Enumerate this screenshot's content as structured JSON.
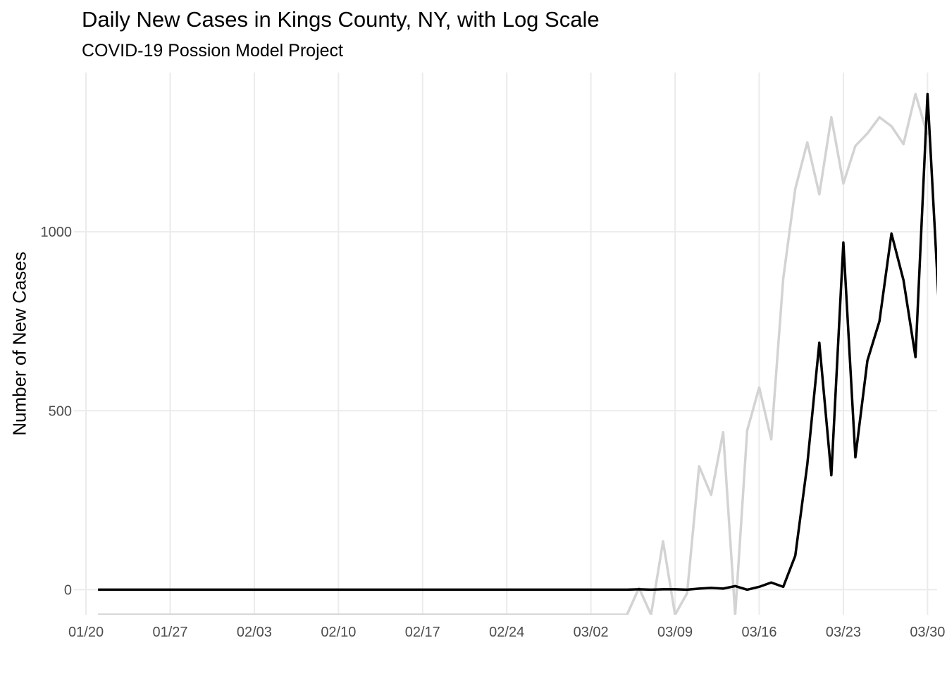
{
  "chart_data": {
    "type": "line",
    "title": "Daily New Cases in Kings County, NY, with Log Scale",
    "subtitle": "COVID-19 Possion Model Project",
    "xlabel": "",
    "ylabel": "Number of New Cases",
    "x_ticks": [
      "01/20",
      "01/27",
      "02/03",
      "02/10",
      "02/17",
      "02/24",
      "03/02",
      "03/09",
      "03/16",
      "03/23",
      "03/30"
    ],
    "y_ticks": [
      "0",
      "500",
      "1000"
    ],
    "y_tick_values": [
      0,
      500,
      1000
    ],
    "ylim": [
      -70,
      1445
    ],
    "xlim_days": [
      -1,
      70.8
    ],
    "grid": true,
    "series": [
      {
        "color": "#000000",
        "stroke_width": 3.5,
        "points": [
          [
            1,
            0
          ],
          [
            2,
            0
          ],
          [
            3,
            0
          ],
          [
            4,
            0
          ],
          [
            5,
            0
          ],
          [
            6,
            0
          ],
          [
            7,
            0
          ],
          [
            8,
            0
          ],
          [
            9,
            0
          ],
          [
            10,
            0
          ],
          [
            11,
            0
          ],
          [
            12,
            0
          ],
          [
            13,
            0
          ],
          [
            14,
            0
          ],
          [
            15,
            0
          ],
          [
            16,
            0
          ],
          [
            17,
            0
          ],
          [
            18,
            0
          ],
          [
            19,
            0
          ],
          [
            20,
            0
          ],
          [
            21,
            0
          ],
          [
            22,
            0
          ],
          [
            23,
            0
          ],
          [
            24,
            0
          ],
          [
            25,
            0
          ],
          [
            26,
            0
          ],
          [
            27,
            0
          ],
          [
            28,
            0
          ],
          [
            29,
            0
          ],
          [
            30,
            0
          ],
          [
            31,
            0
          ],
          [
            32,
            0
          ],
          [
            33,
            0
          ],
          [
            34,
            0
          ],
          [
            35,
            0
          ],
          [
            36,
            0
          ],
          [
            37,
            0
          ],
          [
            38,
            0
          ],
          [
            39,
            0
          ],
          [
            40,
            0
          ],
          [
            41,
            0
          ],
          [
            42,
            0
          ],
          [
            43,
            0
          ],
          [
            44,
            0
          ],
          [
            45,
            0
          ],
          [
            46,
            1
          ],
          [
            47,
            0
          ],
          [
            48,
            1
          ],
          [
            49,
            1
          ],
          [
            50,
            0
          ],
          [
            51,
            3
          ],
          [
            52,
            5
          ],
          [
            53,
            3
          ],
          [
            54,
            10
          ],
          [
            55,
            0
          ],
          [
            56,
            8
          ],
          [
            57,
            20
          ],
          [
            58,
            8
          ],
          [
            59,
            95
          ],
          [
            60,
            350
          ],
          [
            61,
            690
          ],
          [
            62,
            320
          ],
          [
            63,
            970
          ],
          [
            64,
            370
          ],
          [
            65,
            640
          ],
          [
            66,
            750
          ],
          [
            67,
            995
          ],
          [
            68,
            865
          ],
          [
            69,
            650
          ],
          [
            70,
            1385
          ],
          [
            71,
            760
          ]
        ]
      },
      {
        "color": "#d3d3d3",
        "stroke_width": 3.5,
        "points": [
          [
            1,
            -70
          ],
          [
            45,
            -70
          ],
          [
            46,
            5
          ],
          [
            47,
            -70
          ],
          [
            48,
            135
          ],
          [
            49,
            -70
          ],
          [
            50,
            -10
          ],
          [
            51,
            345
          ],
          [
            52,
            265
          ],
          [
            53,
            440
          ],
          [
            54,
            -70
          ],
          [
            55,
            445
          ],
          [
            56,
            565
          ],
          [
            57,
            420
          ],
          [
            58,
            870
          ],
          [
            59,
            1120
          ],
          [
            60,
            1250
          ],
          [
            61,
            1105
          ],
          [
            62,
            1320
          ],
          [
            63,
            1135
          ],
          [
            64,
            1240
          ],
          [
            65,
            1275
          ],
          [
            66,
            1320
          ],
          [
            67,
            1295
          ],
          [
            68,
            1245
          ],
          [
            69,
            1385
          ],
          [
            70,
            1270
          ]
        ]
      }
    ]
  }
}
